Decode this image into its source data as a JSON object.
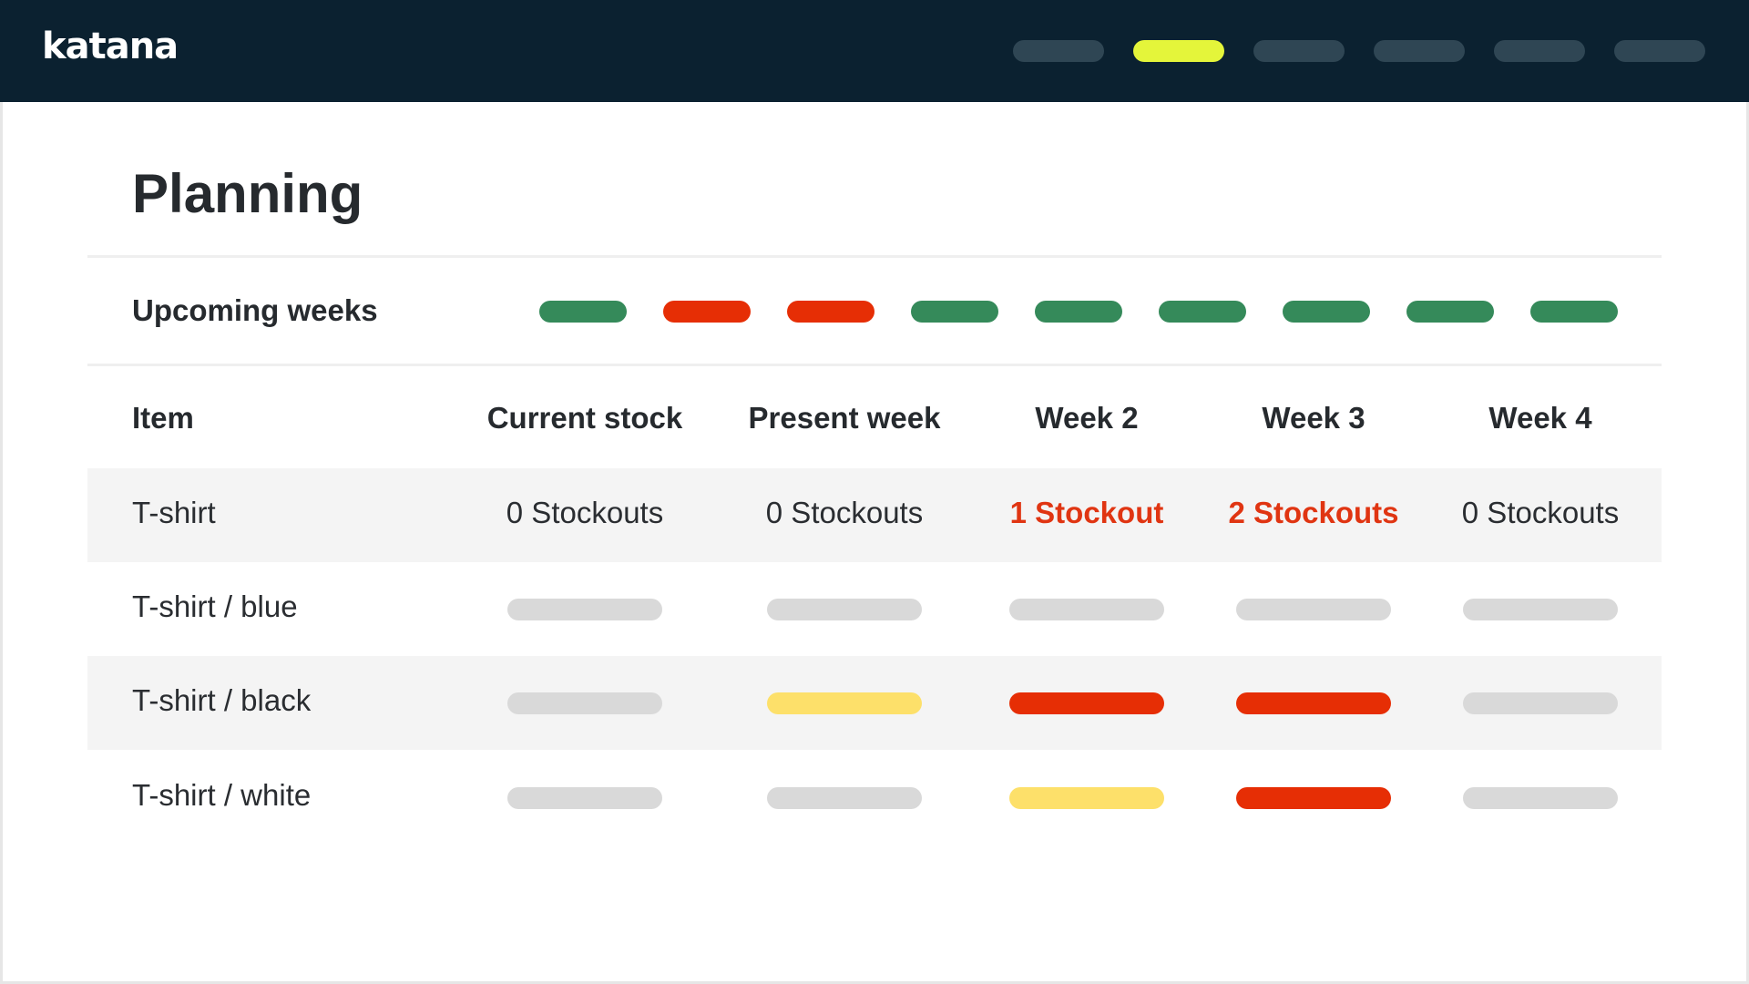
{
  "brand": {
    "logo_text": "katana"
  },
  "nav": {
    "colors": {
      "inactive": "#2f4654",
      "active": "#e4f53a"
    },
    "items": [
      {
        "name": "nav-item-1",
        "active": false
      },
      {
        "name": "nav-item-2",
        "active": true
      },
      {
        "name": "nav-item-3",
        "active": false
      },
      {
        "name": "nav-item-4",
        "active": false
      },
      {
        "name": "nav-item-5",
        "active": false
      },
      {
        "name": "nav-item-6",
        "active": false
      }
    ]
  },
  "page": {
    "title": "Planning"
  },
  "upcoming": {
    "label": "Upcoming weeks",
    "weeks": [
      "ok",
      "stockout",
      "stockout",
      "ok",
      "ok",
      "ok",
      "ok",
      "ok",
      "ok"
    ]
  },
  "status_colors": {
    "ok": "#358a5a",
    "stockout": "#e62e05",
    "neutral": "#d9d9d9",
    "warning": "#fde06a",
    "alert": "#e62e05"
  },
  "table": {
    "headers": [
      "Item",
      "Current stock",
      "Present week",
      "Week 2",
      "Week 3",
      "Week 4"
    ],
    "rows": [
      {
        "item": "T-shirt",
        "cells": [
          {
            "text": "0 Stockouts",
            "alert": false
          },
          {
            "text": "0 Stockouts",
            "alert": false
          },
          {
            "text": "1 Stockout",
            "alert": true
          },
          {
            "text": "2 Stockouts",
            "alert": true
          },
          {
            "text": "0 Stockouts",
            "alert": false
          }
        ]
      },
      {
        "item": "T-shirt / blue",
        "bars": [
          "neutral",
          "neutral",
          "neutral",
          "neutral",
          "neutral"
        ]
      },
      {
        "item": "T-shirt / black",
        "bars": [
          "neutral",
          "warning",
          "alert",
          "alert",
          "neutral"
        ]
      },
      {
        "item": "T-shirt / white",
        "bars": [
          "neutral",
          "neutral",
          "warning",
          "alert",
          "neutral"
        ]
      }
    ]
  }
}
